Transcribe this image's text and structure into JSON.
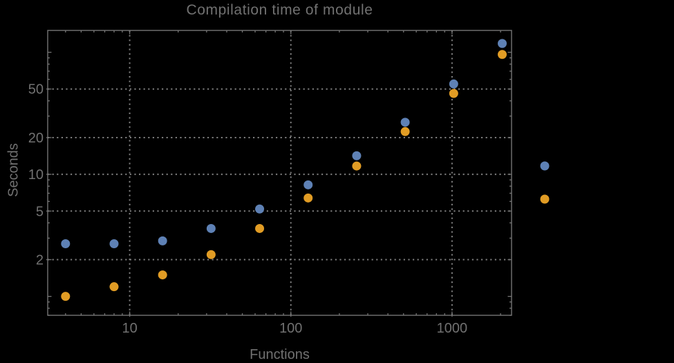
{
  "chart_data": {
    "type": "scatter",
    "title": "Compilation time of module",
    "xlabel": "Functions",
    "ylabel": "Seconds",
    "x_scale": "log",
    "y_scale": "log",
    "grid": "dotted",
    "legend_position": "outside-right",
    "colors": {
      "background": "#000000",
      "text": "#717171",
      "frame": "#757575",
      "grid": "#7d7d7d"
    },
    "x_axis": {
      "range": [
        3.1,
        2340
      ],
      "major_ticks": [
        10,
        100,
        1000
      ],
      "tick_labels": [
        "10",
        "100",
        "1000"
      ],
      "minor_ticks": [
        4,
        5,
        6,
        7,
        8,
        9,
        20,
        30,
        40,
        50,
        60,
        70,
        80,
        90,
        200,
        300,
        400,
        500,
        600,
        700,
        800,
        900,
        2000
      ]
    },
    "y_axis": {
      "range": [
        0.7,
        151
      ],
      "major_ticks": [
        2,
        5,
        10,
        20,
        50
      ],
      "tick_labels": [
        "2",
        "5",
        "10",
        "20",
        "50"
      ],
      "unlabeled_major_ticks": [
        1,
        100
      ],
      "minor_ticks": [
        0.7,
        0.8,
        0.9,
        3,
        4,
        6,
        7,
        8,
        9,
        30,
        40,
        60,
        70,
        80,
        90
      ]
    },
    "x": [
      4,
      8,
      16,
      32,
      64,
      128,
      256,
      512,
      1024,
      2048
    ],
    "series": [
      {
        "name": "blue",
        "color": "#5E81B5",
        "values": [
          2.7,
          2.7,
          2.85,
          3.6,
          5.2,
          8.2,
          14.2,
          26.7,
          55,
          118
        ]
      },
      {
        "name": "orange",
        "color": "#E19C24",
        "values": [
          1.0,
          1.2,
          1.5,
          2.2,
          3.6,
          6.4,
          11.7,
          22.4,
          46,
          96
        ]
      }
    ],
    "legend": {
      "markers": [
        {
          "series": "blue",
          "color": "#5E81B5"
        },
        {
          "series": "orange",
          "color": "#E19C24"
        }
      ]
    }
  }
}
